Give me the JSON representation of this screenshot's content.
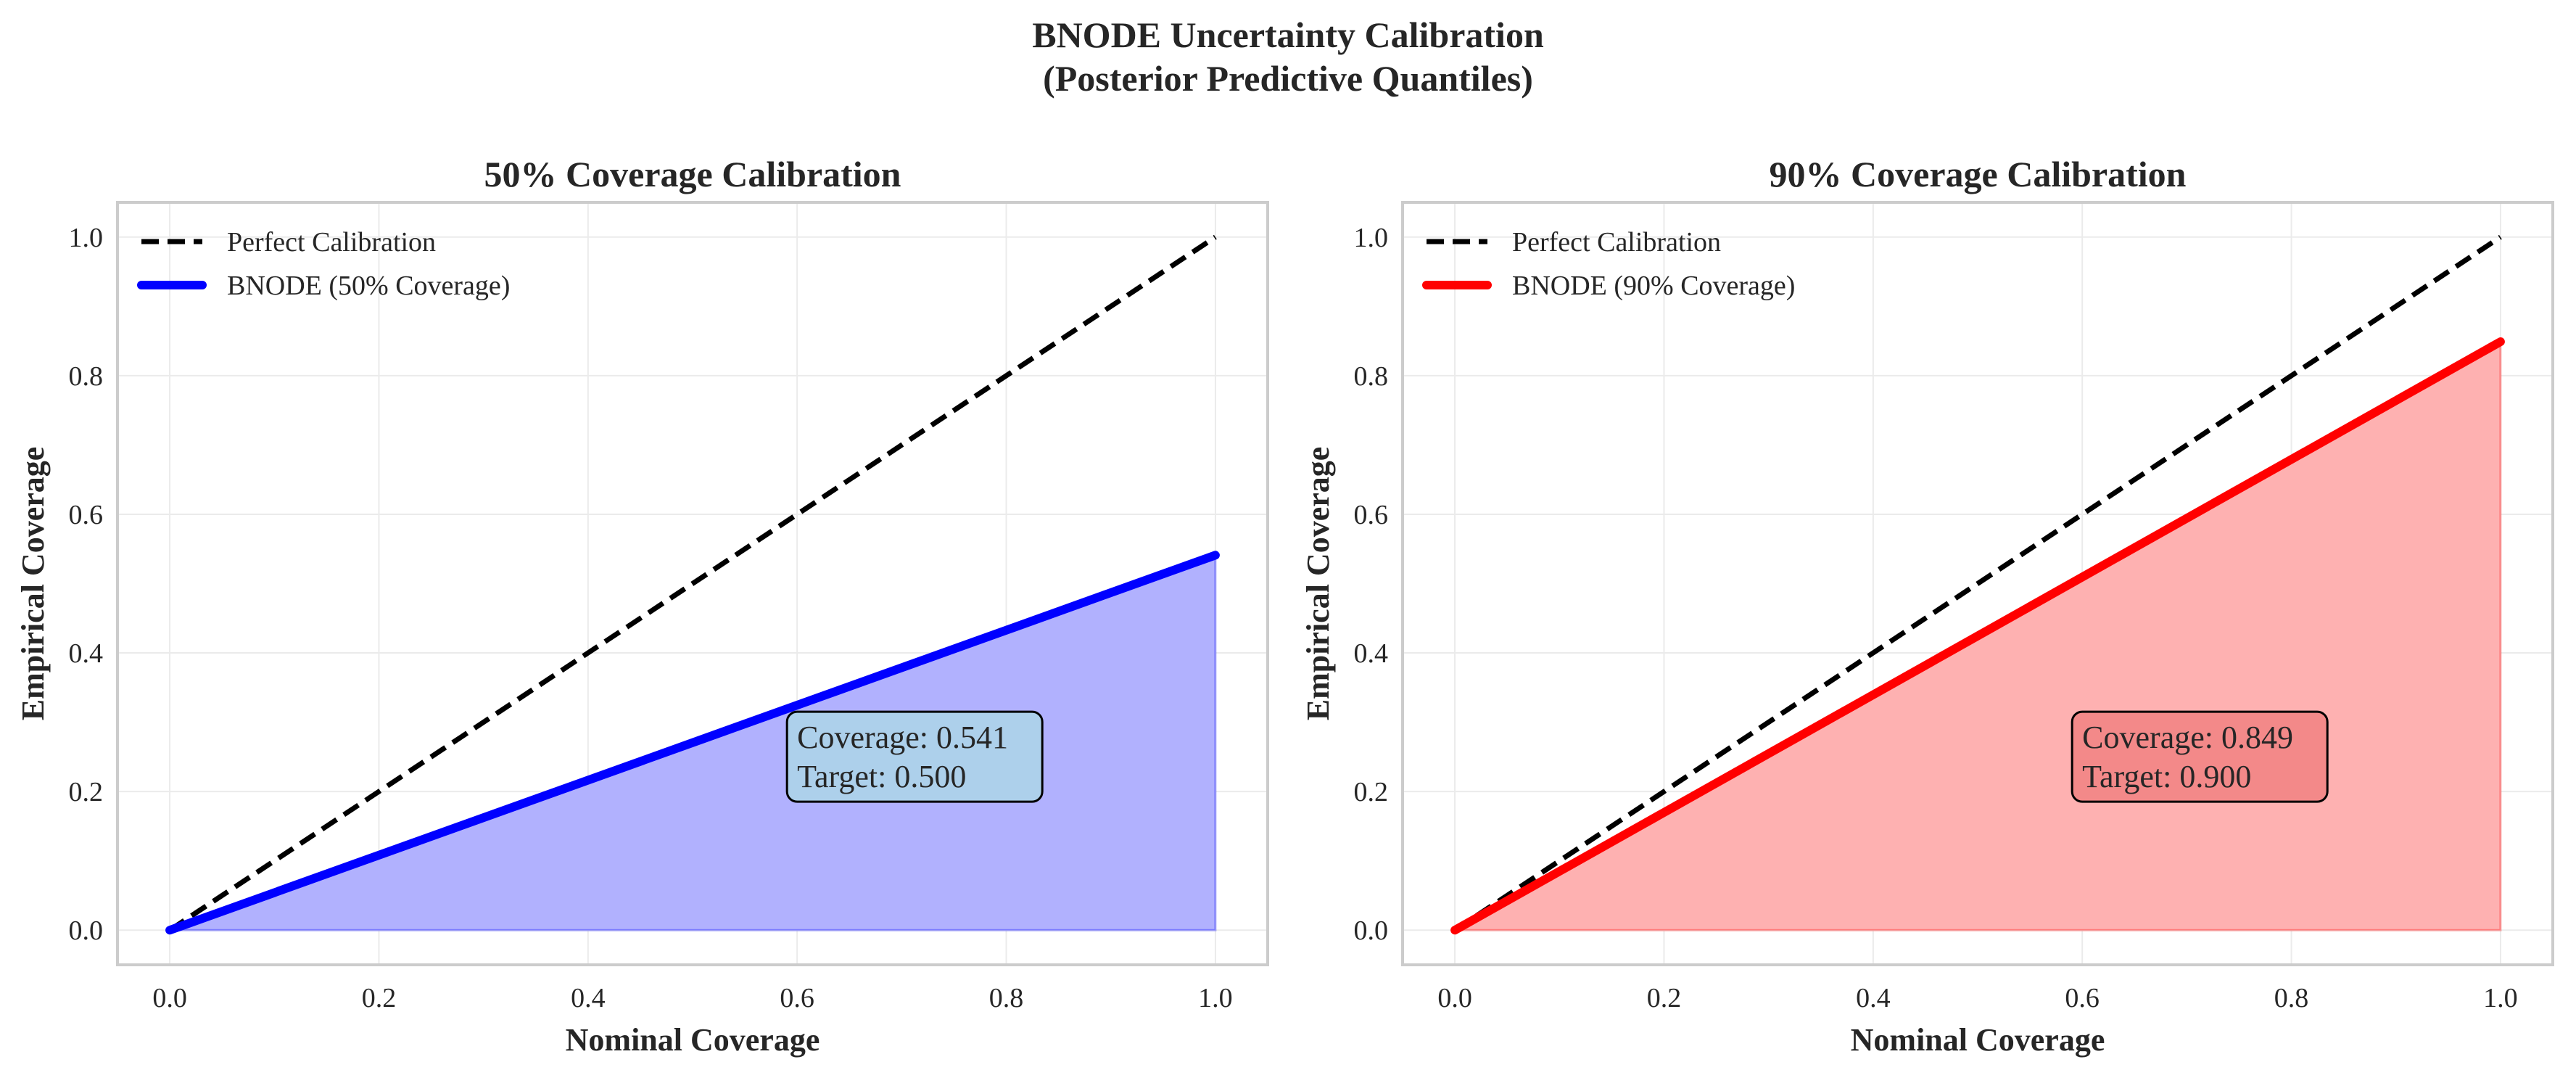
{
  "figure": {
    "suptitle_lines": [
      "BNODE Uncertainty Calibration",
      "(Posterior Predictive Quantiles)"
    ]
  },
  "chart_data": [
    {
      "type": "line",
      "title": "50% Coverage Calibration",
      "xlabel": "Nominal Coverage",
      "ylabel": "Empirical Coverage",
      "xlim": [
        -0.05,
        1.05
      ],
      "ylim": [
        -0.05,
        1.05
      ],
      "xticks": [
        "0.0",
        "0.2",
        "0.4",
        "0.6",
        "0.8",
        "1.0"
      ],
      "yticks": [
        "0.0",
        "0.2",
        "0.4",
        "0.6",
        "0.8",
        "1.0"
      ],
      "grid": true,
      "legend_position": "top-left",
      "series": [
        {
          "name": "Perfect Calibration",
          "style": "dashed",
          "color": "#000000",
          "x": [
            0,
            1
          ],
          "y": [
            0,
            1
          ]
        },
        {
          "name": "BNODE (50% Coverage)",
          "style": "solid",
          "color": "#0000ff",
          "fill": "#b1b1fe",
          "fill_area": true,
          "x": [
            0,
            1
          ],
          "y": [
            0,
            0.541
          ]
        }
      ],
      "annotation": {
        "lines": [
          "Coverage: 0.541",
          "Target: 0.500"
        ],
        "x": 0.6,
        "y": 0.2,
        "box_color": "#add8e6"
      }
    },
    {
      "type": "line",
      "title": "90% Coverage Calibration",
      "xlabel": "Nominal Coverage",
      "ylabel": "Empirical Coverage",
      "xlim": [
        -0.05,
        1.05
      ],
      "ylim": [
        -0.05,
        1.05
      ],
      "xticks": [
        "0.0",
        "0.2",
        "0.4",
        "0.6",
        "0.8",
        "1.0"
      ],
      "yticks": [
        "0.0",
        "0.2",
        "0.4",
        "0.6",
        "0.8",
        "1.0"
      ],
      "grid": true,
      "legend_position": "top-left",
      "series": [
        {
          "name": "Perfect Calibration",
          "style": "dashed",
          "color": "#000000",
          "x": [
            0,
            1
          ],
          "y": [
            0,
            1
          ]
        },
        {
          "name": "BNODE (90% Coverage)",
          "style": "solid",
          "color": "#ff0000",
          "fill": "#feb1b1",
          "fill_area": true,
          "x": [
            0,
            1
          ],
          "y": [
            0,
            0.849
          ]
        }
      ],
      "annotation": {
        "lines": [
          "Coverage: 0.849",
          "Target: 0.900"
        ],
        "x": 0.6,
        "y": 0.2,
        "box_color": "#f08080"
      }
    }
  ]
}
